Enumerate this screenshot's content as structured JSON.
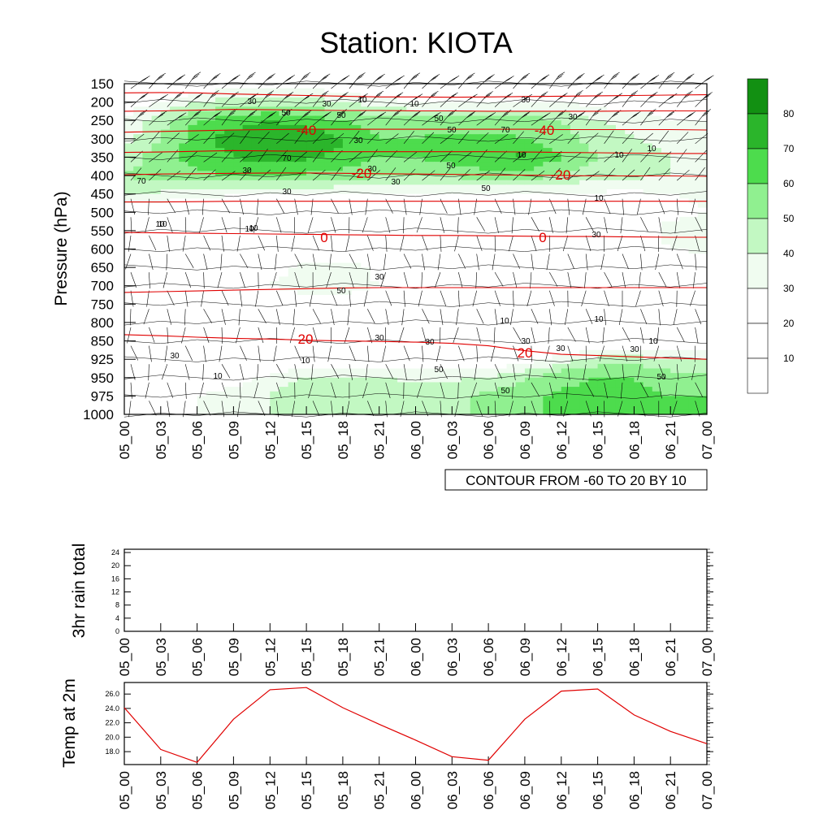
{
  "title": "Station: KIOTA",
  "colors": {
    "fill_levels": [
      "#ffffff",
      "#ffffff",
      "#ffffff",
      "#f0fcf0",
      "#c2f8c2",
      "#90f090",
      "#4ddc4d",
      "#2bb52b",
      "#129012"
    ],
    "temperature": "#e00000",
    "wind": "#000000",
    "contour": "#000000"
  },
  "chart_data": [
    {
      "type": "heatmap",
      "name": "cross-section",
      "ylabel": "Pressure (hPa)",
      "xlabel": "",
      "x_labels": [
        "05_00",
        "05_03",
        "05_06",
        "05_09",
        "05_12",
        "05_15",
        "05_18",
        "05_21",
        "06_00",
        "06_03",
        "06_06",
        "06_09",
        "06_12",
        "06_15",
        "06_18",
        "06_21",
        "07_00"
      ],
      "y_labels": [
        "150",
        "200",
        "250",
        "300",
        "350",
        "400",
        "450",
        "500",
        "550",
        "600",
        "650",
        "700",
        "750",
        "800",
        "850",
        "925",
        "950",
        "975",
        "1000"
      ],
      "note": "CONTOUR FROM -60 TO 20 BY 10",
      "legend_levels": [
        "10",
        "20",
        "30",
        "40",
        "50",
        "60",
        "70",
        "80"
      ],
      "humidity_grid_rows": [
        [
          15,
          15,
          20,
          25,
          25,
          25,
          20,
          15,
          15,
          15,
          15,
          15,
          15,
          15,
          15,
          15,
          15
        ],
        [
          25,
          30,
          40,
          45,
          45,
          45,
          40,
          35,
          30,
          30,
          30,
          30,
          30,
          25,
          25,
          25,
          25
        ],
        [
          30,
          45,
          60,
          65,
          70,
          65,
          60,
          55,
          55,
          55,
          55,
          55,
          50,
          40,
          35,
          30,
          30
        ],
        [
          35,
          50,
          65,
          75,
          80,
          78,
          70,
          60,
          60,
          62,
          62,
          60,
          55,
          45,
          40,
          35,
          35
        ],
        [
          45,
          55,
          65,
          70,
          75,
          72,
          68,
          60,
          60,
          65,
          70,
          72,
          60,
          50,
          45,
          40,
          40
        ],
        [
          50,
          55,
          58,
          60,
          60,
          58,
          55,
          52,
          50,
          52,
          55,
          55,
          50,
          45,
          42,
          40,
          38
        ],
        [
          40,
          38,
          35,
          32,
          32,
          32,
          30,
          30,
          28,
          30,
          30,
          30,
          28,
          28,
          28,
          30,
          32
        ],
        [
          20,
          18,
          15,
          12,
          12,
          12,
          12,
          12,
          12,
          12,
          12,
          12,
          12,
          15,
          20,
          25,
          30
        ],
        [
          15,
          12,
          10,
          10,
          10,
          10,
          10,
          10,
          10,
          10,
          10,
          10,
          10,
          15,
          22,
          35,
          38
        ],
        [
          12,
          10,
          10,
          10,
          12,
          15,
          15,
          12,
          10,
          10,
          10,
          10,
          12,
          15,
          20,
          30,
          32
        ],
        [
          15,
          12,
          12,
          15,
          25,
          35,
          35,
          28,
          20,
          15,
          15,
          15,
          15,
          15,
          18,
          20,
          22
        ],
        [
          20,
          15,
          15,
          20,
          30,
          35,
          35,
          30,
          25,
          20,
          20,
          20,
          20,
          20,
          20,
          20,
          20
        ],
        [
          18,
          15,
          15,
          18,
          22,
          25,
          25,
          22,
          20,
          18,
          18,
          18,
          18,
          18,
          18,
          18,
          18
        ],
        [
          15,
          12,
          12,
          12,
          12,
          12,
          12,
          12,
          12,
          12,
          12,
          12,
          12,
          12,
          15,
          15,
          15
        ],
        [
          15,
          12,
          12,
          12,
          12,
          12,
          12,
          12,
          12,
          12,
          12,
          12,
          12,
          12,
          15,
          15,
          15
        ],
        [
          20,
          15,
          12,
          15,
          20,
          22,
          22,
          22,
          20,
          20,
          20,
          25,
          35,
          45,
          45,
          40,
          40
        ],
        [
          22,
          20,
          20,
          25,
          32,
          40,
          42,
          40,
          38,
          38,
          40,
          48,
          58,
          60,
          60,
          55,
          55
        ],
        [
          25,
          25,
          30,
          35,
          40,
          48,
          50,
          48,
          45,
          48,
          52,
          58,
          62,
          62,
          62,
          60,
          60
        ],
        [
          25,
          25,
          30,
          35,
          40,
          48,
          50,
          48,
          45,
          48,
          52,
          58,
          62,
          62,
          62,
          60,
          60
        ]
      ],
      "temperature_contours": [
        {
          "label": "-40",
          "pressure": [
            175,
            174,
            175,
            178,
            180,
            182,
            184,
            186,
            186,
            187,
            186,
            185,
            184,
            183,
            182,
            181,
            180
          ]
        },
        {
          "label": "-40",
          "pressure": [
            225,
            224,
            222,
            220,
            221,
            222,
            223,
            223,
            224,
            224,
            225,
            225,
            225,
            225,
            224,
            224,
            224
          ]
        },
        {
          "label": "-40",
          "pressure": [
            282,
            280,
            278,
            276,
            275,
            274,
            274,
            274,
            274,
            274,
            274,
            274,
            275,
            275,
            275,
            275,
            276
          ]
        },
        {
          "label": "-20",
          "pressure": [
            337,
            336,
            334,
            332,
            333,
            334,
            335,
            335,
            335,
            335,
            335,
            336,
            337,
            338,
            339,
            340,
            340
          ]
        },
        {
          "label": "-20",
          "pressure": [
            398,
            396,
            395,
            394,
            393,
            393,
            394,
            395,
            396,
            397,
            398,
            399,
            400,
            401,
            401,
            401,
            402
          ]
        },
        {
          "label": "",
          "pressure": [
            472,
            472,
            471,
            470,
            470,
            470,
            470,
            470,
            470,
            470,
            470,
            470,
            470,
            470,
            470,
            470,
            470
          ]
        },
        {
          "label": "0",
          "pressure": [
            555,
            556,
            557,
            558,
            559,
            560,
            561,
            562,
            563,
            563,
            564,
            565,
            566,
            566,
            567,
            568,
            568
          ]
        },
        {
          "label": "",
          "pressure": [
            718,
            716,
            714,
            712,
            710,
            708,
            706,
            705,
            705,
            705,
            705,
            705,
            705,
            705,
            705,
            705,
            705
          ]
        },
        {
          "label": "20",
          "pressure": [
            833,
            836,
            840,
            843,
            845,
            848,
            850,
            852,
            855,
            860,
            870,
            890,
            905,
            910,
            915,
            920,
            925
          ]
        }
      ],
      "humidity_labels": [
        "10",
        "10",
        "30",
        "30",
        "30",
        "30",
        "30",
        "50",
        "50",
        "50",
        "50",
        "50",
        "50",
        "70",
        "70",
        "70",
        "30",
        "30",
        "10",
        "10",
        "10",
        "10",
        "10",
        "10",
        "30",
        "30",
        "30",
        "50",
        "50",
        "30",
        "10",
        "10",
        "10",
        "10",
        "10",
        "30",
        "30",
        "30",
        "30",
        "30",
        "50",
        "50",
        "30",
        "10",
        "10"
      ],
      "temperature_labels": [
        "-40",
        "-40",
        "-20",
        "-20",
        "0",
        "0",
        "20",
        "20"
      ]
    },
    {
      "type": "line",
      "name": "rain",
      "ylabel": "3hr rain total",
      "y_ticks": [
        "0",
        "4",
        "8",
        "12",
        "16",
        "20",
        "24"
      ],
      "ylim": [
        0,
        25
      ],
      "x_labels": [
        "05_00",
        "05_03",
        "05_06",
        "05_09",
        "05_12",
        "05_15",
        "05_18",
        "05_21",
        "06_00",
        "06_03",
        "06_06",
        "06_09",
        "06_12",
        "06_15",
        "06_18",
        "06_21",
        "07_00"
      ],
      "values": []
    },
    {
      "type": "line",
      "name": "temperature",
      "ylabel": "Temp at 2m",
      "y_ticks": [
        "18.0",
        "20.0",
        "22.0",
        "24.0",
        "26.0"
      ],
      "ylim": [
        16.2,
        27.6
      ],
      "x_labels": [
        "05_00",
        "05_03",
        "05_06",
        "05_09",
        "05_12",
        "05_15",
        "05_18",
        "05_21",
        "06_00",
        "06_03",
        "06_06",
        "06_09",
        "06_12",
        "06_15",
        "06_18",
        "06_21",
        "07_00"
      ],
      "values": [
        24.1,
        18.3,
        16.5,
        22.5,
        26.6,
        26.9,
        24.1,
        21.8,
        19.6,
        17.3,
        16.8,
        22.5,
        26.4,
        26.7,
        23.1,
        20.8,
        19.1
      ]
    }
  ]
}
